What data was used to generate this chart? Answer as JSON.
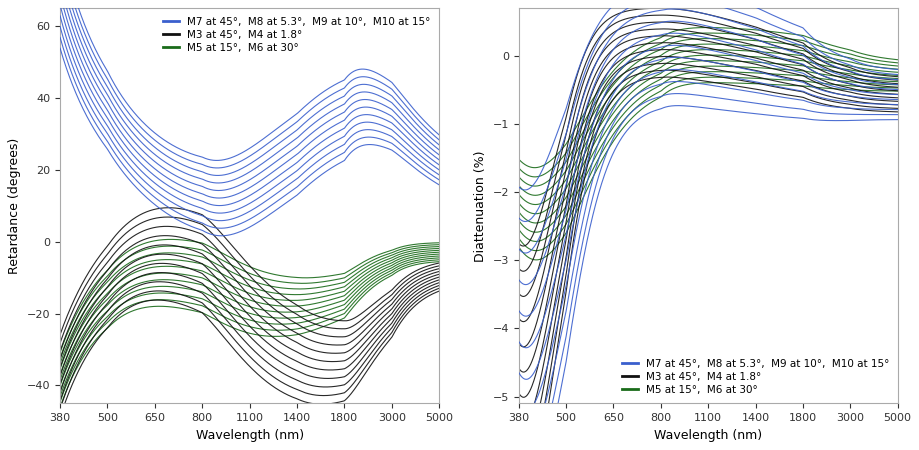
{
  "left_ylabel": "Retardance (degrees)",
  "right_ylabel": "Diattenuation (%)",
  "xlabel": "Wavelength (nm)",
  "xlim": [
    380,
    5000
  ],
  "left_ylim": [
    -45,
    65
  ],
  "right_ylim": [
    -5.1,
    0.7
  ],
  "xticks": [
    380,
    500,
    650,
    800,
    1100,
    1400,
    1800,
    3000,
    5000
  ],
  "left_yticks": [
    -40,
    -20,
    0,
    20,
    40,
    60
  ],
  "right_yticks": [
    -5,
    -4,
    -3,
    -2,
    -1,
    0
  ],
  "colors": {
    "blue": "#3a5fcd",
    "black": "#111111",
    "green": "#1a6b1a"
  },
  "legend_labels": {
    "blue": "M7 at 45°,  M8 at 5.3°,  M9 at 10°,  M10 at 15°",
    "black": "M3 at 45°,  M4 at 1.8°",
    "green": "M5 at 15°,  M6 at 30°"
  },
  "n_curves": 11,
  "background_color": "#ffffff",
  "ret_blue_spread": 4.5,
  "ret_black_spread": 3.0,
  "ret_green_spread": 2.5,
  "dia_blue_spread": 0.35,
  "dia_black_spread": 0.25,
  "dia_green_spread": 0.2
}
